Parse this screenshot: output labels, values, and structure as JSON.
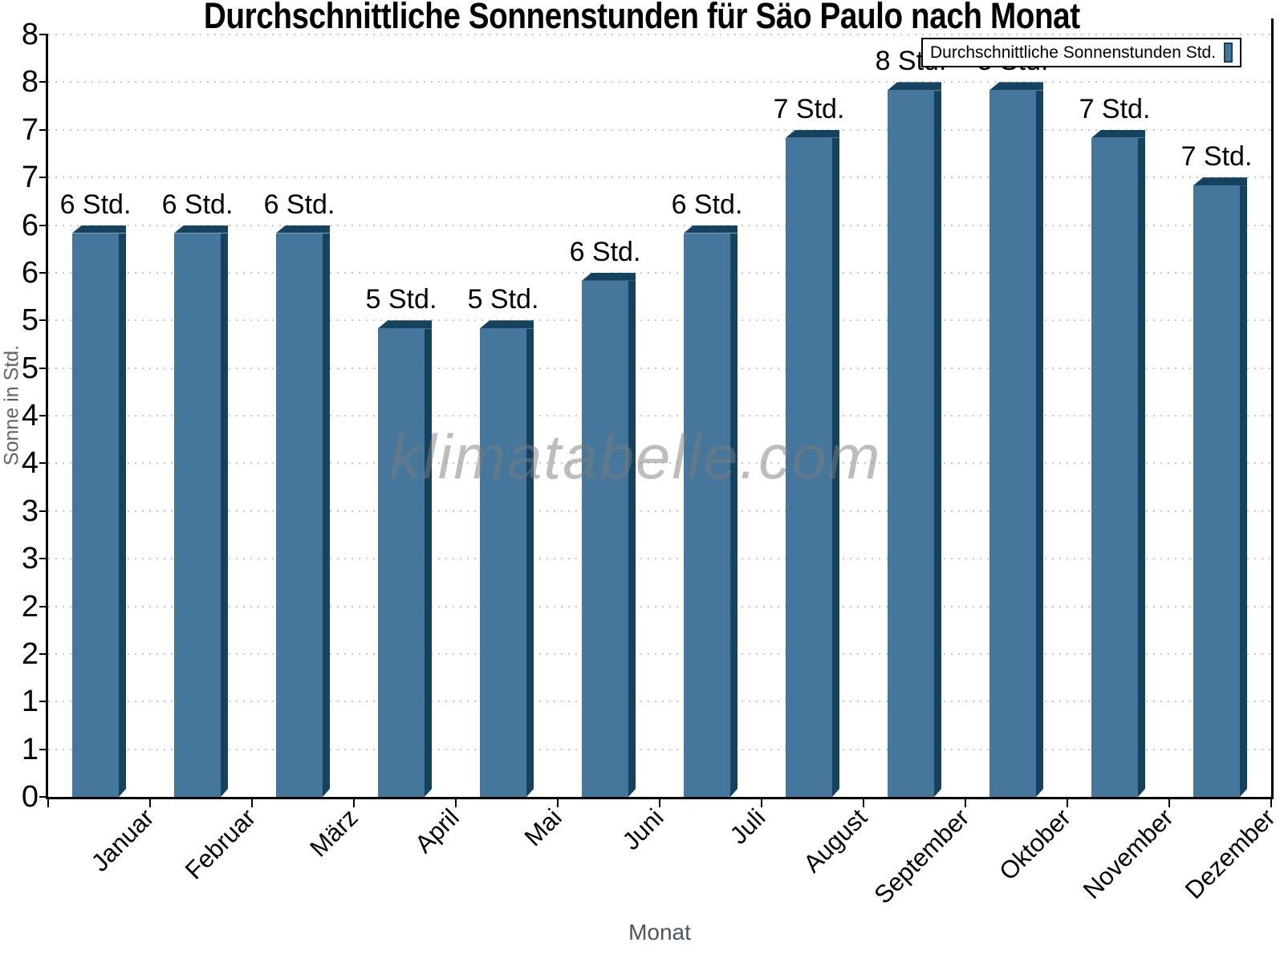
{
  "chart_data": {
    "type": "bar",
    "title": "Durchschnittliche Sonnenstunden für Säo Paulo nach Monat",
    "xlabel": "Monat",
    "ylabel": "Sonne in Std.",
    "categories": [
      "Januar",
      "Februar",
      "März",
      "April",
      "Mai",
      "Juni",
      "Juli",
      "August",
      "September",
      "Oktober",
      "November",
      "Dezember"
    ],
    "series": [
      {
        "name": "Durchschnittliche Sonnenstunden Std.",
        "values": [
          6,
          6,
          6,
          5,
          5,
          5.5,
          6,
          7,
          7.5,
          7.5,
          7,
          6.5
        ],
        "bar_labels": [
          "6 Std.",
          "6 Std.",
          "6 Std.",
          "5 Std.",
          "5 Std.",
          "6 Std.",
          "6 Std.",
          "7 Std.",
          "8 Std.",
          "8 Std.",
          "7 Std.",
          "7 Std."
        ]
      }
    ],
    "legend_position": "top-right",
    "ylim": [
      0,
      8
    ],
    "ytick_step": 0.5,
    "ytick_labels_top_to_bottom": [
      "8",
      "8",
      "7",
      "7",
      "6",
      "6",
      "5",
      "5",
      "4",
      "4",
      "3",
      "3",
      "2",
      "2",
      "1",
      "1",
      "0"
    ],
    "grid": "horizontal-dotted",
    "watermark": "klimatabelle.com",
    "colors": {
      "bar_fill": "#44779B",
      "bar_shadow": "#15425F",
      "grid": "#C6C6C6",
      "axis": "#000000",
      "axis_title": "#4A5560",
      "watermark": "#7D7D7D"
    }
  }
}
